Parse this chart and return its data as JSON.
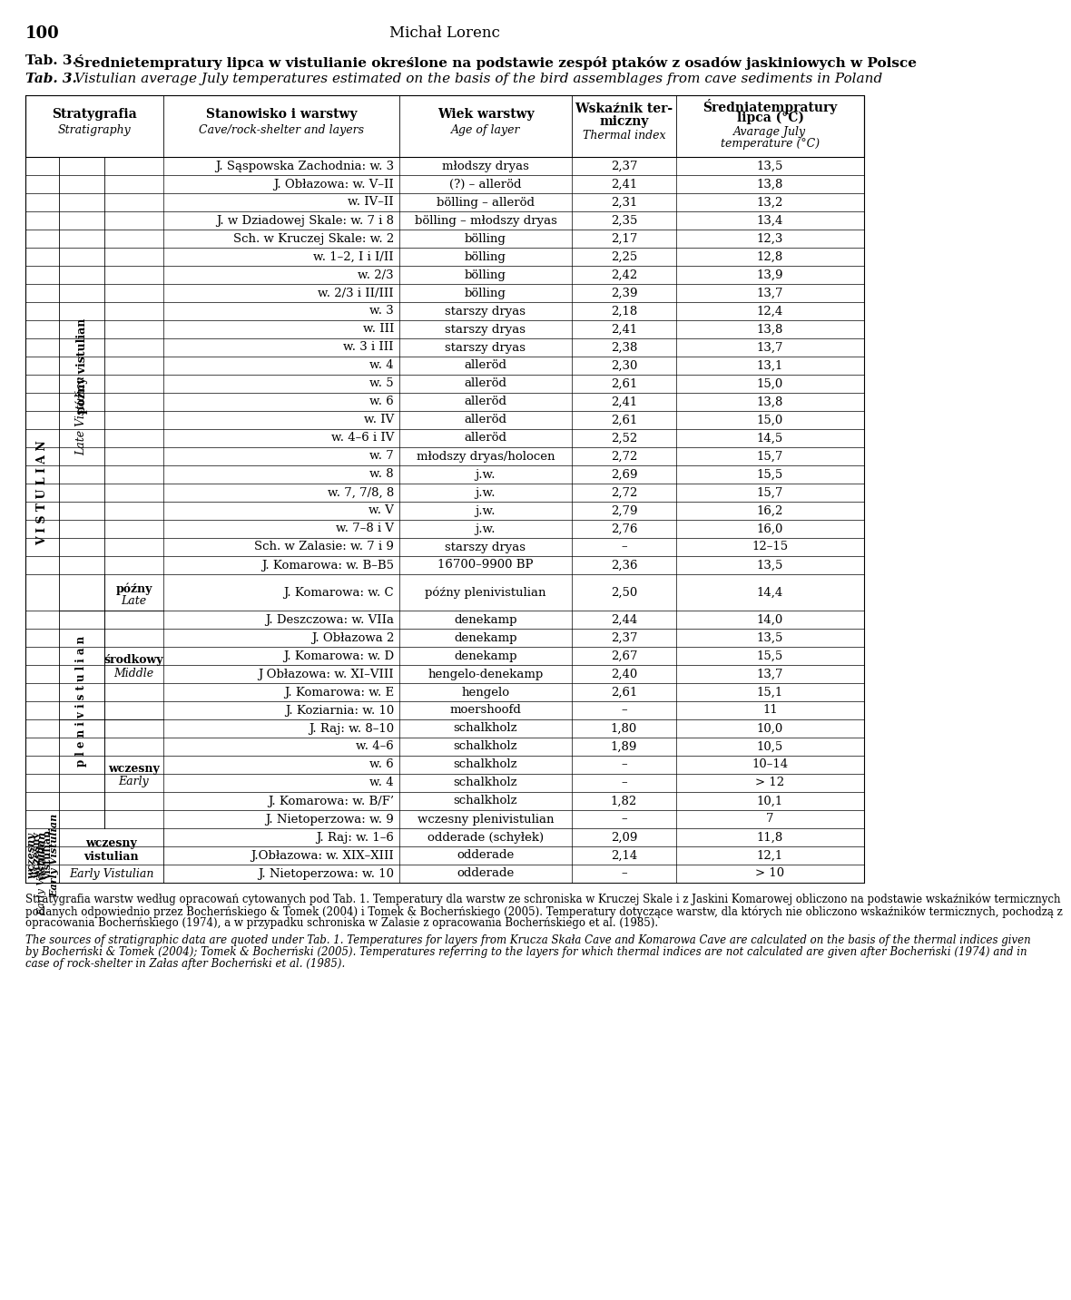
{
  "page_number": "100",
  "page_header": "Michał Lorenc",
  "title_pl_bold": "Tab. 3.",
  "title_pl_rest": "Średnietempratury lipca w vistulianie określone na podstawie zespół ptaków z osadów jaskiniowych w Polsce",
  "title_en_bold": "Tab. 3.",
  "title_en_rest": "Vistulian average July temperatures estimated on the basis of the bird assemblages from cave sediments in Poland",
  "col_headers_row1": [
    "Stratygrafia",
    "Stanowisko i warstwy",
    "Wiek warstwy",
    "Wskaźnik ter-\nmiczny",
    "Średniatempratury\nlipca (°C)"
  ],
  "col_headers_row2": [
    "Stratigraphy",
    "Cave/rock-shelter and layers",
    "Age of layer",
    "Thermal index",
    "Avarage July\ntemperature (°C)"
  ],
  "rows": [
    {
      "site": "J. Sąspowska Zachodnia: w. 3",
      "age": "młodszy dryas",
      "thermal": "2,37",
      "temp": "13,5"
    },
    {
      "site": "J. Obłazowa: w. V–II",
      "age": "(?) – alleröd",
      "thermal": "2,41",
      "temp": "13,8"
    },
    {
      "site": "w. IV–II",
      "age": "bölling – alleröd",
      "thermal": "2,31",
      "temp": "13,2"
    },
    {
      "site": "J. w Dziadowej Skale: w. 7 i 8",
      "age": "bölling – młodszy dryas",
      "thermal": "2,35",
      "temp": "13,4"
    },
    {
      "site": "Sch. w Kruczej Skale: w. 2",
      "age": "bölling",
      "thermal": "2,17",
      "temp": "12,3"
    },
    {
      "site": "w. 1–2, I i I/II",
      "age": "bölling",
      "thermal": "2,25",
      "temp": "12,8"
    },
    {
      "site": "w. 2/3",
      "age": "bölling",
      "thermal": "2,42",
      "temp": "13,9"
    },
    {
      "site": "w. 2/3 i II/III",
      "age": "bölling",
      "thermal": "2,39",
      "temp": "13,7"
    },
    {
      "site": "w. 3",
      "age": "starszy dryas",
      "thermal": "2,18",
      "temp": "12,4"
    },
    {
      "site": "w. III",
      "age": "starszy dryas",
      "thermal": "2,41",
      "temp": "13,8"
    },
    {
      "site": "w. 3 i III",
      "age": "starszy dryas",
      "thermal": "2,38",
      "temp": "13,7"
    },
    {
      "site": "w. 4",
      "age": "alleröd",
      "thermal": "2,30",
      "temp": "13,1"
    },
    {
      "site": "w. 5",
      "age": "alleröd",
      "thermal": "2,61",
      "temp": "15,0"
    },
    {
      "site": "w. 6",
      "age": "alleröd",
      "thermal": "2,41",
      "temp": "13,8"
    },
    {
      "site": "w. IV",
      "age": "alleröd",
      "thermal": "2,61",
      "temp": "15,0"
    },
    {
      "site": "w. 4–6 i IV",
      "age": "alleröd",
      "thermal": "2,52",
      "temp": "14,5"
    },
    {
      "site": "w. 7",
      "age": "młodszy dryas/holocen",
      "thermal": "2,72",
      "temp": "15,7"
    },
    {
      "site": "w. 8",
      "age": "j.w.",
      "thermal": "2,69",
      "temp": "15,5"
    },
    {
      "site": "w. 7, 7/8, 8",
      "age": "j.w.",
      "thermal": "2,72",
      "temp": "15,7"
    },
    {
      "site": "w. V",
      "age": "j.w.",
      "thermal": "2,79",
      "temp": "16,2"
    },
    {
      "site": "w. 7–8 i V",
      "age": "j.w.",
      "thermal": "2,76",
      "temp": "16,0"
    },
    {
      "site": "Sch. w Zalasie: w. 7 i 9",
      "age": "starszy dryas",
      "thermal": "–",
      "temp": "12–15"
    },
    {
      "site": "J. Komarowa: w. B–B5",
      "age": "16700–9900 BP",
      "thermal": "2,36",
      "temp": "13,5"
    },
    {
      "site": "J. Komarowa: w. C",
      "age": "późny plenivistulian",
      "thermal": "2,50",
      "temp": "14,4"
    },
    {
      "site": "J. Deszczowa: w. VIIa",
      "age": "denekamp",
      "thermal": "2,44",
      "temp": "14,0"
    },
    {
      "site": "J. Obłazowa 2",
      "age": "denekamp",
      "thermal": "2,37",
      "temp": "13,5"
    },
    {
      "site": "J. Komarowa: w. D",
      "age": "denekamp",
      "thermal": "2,67",
      "temp": "15,5"
    },
    {
      "site": "J Obłazowa: w. XI–VIII",
      "age": "hengelo-denekamp",
      "thermal": "2,40",
      "temp": "13,7"
    },
    {
      "site": "J. Komarowa: w. E",
      "age": "hengelo",
      "thermal": "2,61",
      "temp": "15,1"
    },
    {
      "site": "J. Koziarnia: w. 10",
      "age": "moershoofd",
      "thermal": "–",
      "temp": "11"
    },
    {
      "site": "J. Raj: w. 8–10",
      "age": "schalkholz",
      "thermal": "1,80",
      "temp": "10,0"
    },
    {
      "site": "w. 4–6",
      "age": "schalkholz",
      "thermal": "1,89",
      "temp": "10,5"
    },
    {
      "site": "w. 6",
      "age": "schalkholz",
      "thermal": "–",
      "temp": "10–14"
    },
    {
      "site": "w. 4",
      "age": "schalkholz",
      "thermal": "–",
      "temp": "> 12"
    },
    {
      "site": "J. Komarowa: w. B/F’",
      "age": "schalkholz",
      "thermal": "1,82",
      "temp": "10,1"
    },
    {
      "site": "J. Nietoperzowa: w. 9",
      "age": "wczesny plenivistulian",
      "thermal": "–",
      "temp": "7"
    },
    {
      "site": "J. Raj: w. 1–6",
      "age": "odderade (schyłek)",
      "thermal": "2,09",
      "temp": "11,8"
    },
    {
      "site": "J.Obłazowa: w. XIX–XIII",
      "age": "odderade",
      "thermal": "2,14",
      "temp": "12,1"
    },
    {
      "site": "J. Nietoperzowa: w. 10",
      "age": "odderade",
      "thermal": "–",
      "temp": "> 10"
    }
  ],
  "footnote_pl": "    Stratygrafia warstw według opracowań cytowanych pod Tab. 1. Temperatury dla warstw ze schroniska w Kruczej Skale i z Jaskini Komarowej obliczono na podstawie wskaźników termicznych podanych odpowiednio przez Bocherńskiego & Tomek (2004) i Tomek & Bocherńskiego (2005). Temperatury dotyczące warstw, dla których nie obliczono wskaźników termicznych, pochodzą z opracowania Bocherńskiego (1974), a w przypadku schroniska w Zalasie z opracowania Bocherńskiego et al. (1985).",
  "footnote_en": "    The sources of stratigraphic data are quoted under Tab. 1. Temperatures for layers from Krucza Skała Cave and Komarowa Cave are calculated on the basis of the thermal indices given by Bocherński & Tomek (2004); Tomek & Bocherński (2005). Temperatures referring to the layers for which thermal indices are not calculated are given after Bocherński (1974) and in case of rock-shelter in Załas after Bocherński et al. (1985)."
}
